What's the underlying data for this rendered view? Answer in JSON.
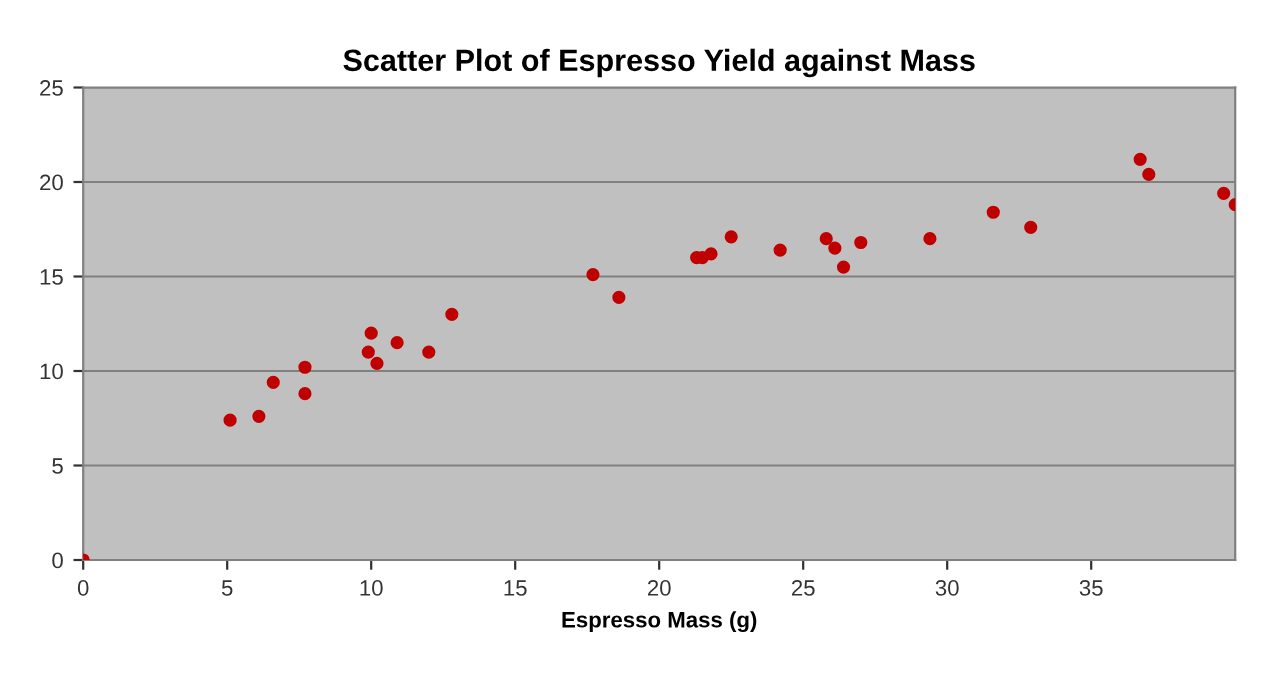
{
  "chart_data": {
    "type": "scatter",
    "title": "Scatter Plot of Espresso Yield against Mass",
    "xlabel": "Espresso Mass (g)",
    "x": [
      0,
      5.1,
      6.1,
      6.6,
      7.7,
      7.7,
      9.9,
      10.0,
      10.2,
      10.9,
      12.0,
      12.8,
      17.7,
      18.6,
      21.3,
      21.5,
      21.8,
      22.5,
      24.2,
      25.8,
      26.1,
      26.4,
      27.0,
      29.4,
      31.6,
      32.9,
      36.7,
      37.0,
      39.6,
      40.0
    ],
    "series": [
      {
        "color": "#c00000",
        "values": [
          0,
          7.4,
          7.6,
          9.4,
          8.8,
          10.2,
          11.0,
          12.0,
          10.4,
          11.5,
          11.0,
          13.0,
          15.1,
          13.9,
          16.0,
          16.0,
          16.2,
          17.1,
          16.4,
          17.0,
          16.5,
          15.5,
          16.8,
          17.0,
          18.4,
          17.6,
          21.2,
          20.4,
          19.4,
          18.8
        ]
      }
    ],
    "xlim": [
      0,
      40
    ],
    "xticks": [
      0,
      5,
      10,
      15,
      20,
      25,
      30,
      35
    ],
    "ylim": [
      0,
      25
    ],
    "yticks": [
      0,
      5,
      10,
      15,
      20,
      25
    ],
    "grid": "y",
    "marker": "circle",
    "legend": false
  }
}
